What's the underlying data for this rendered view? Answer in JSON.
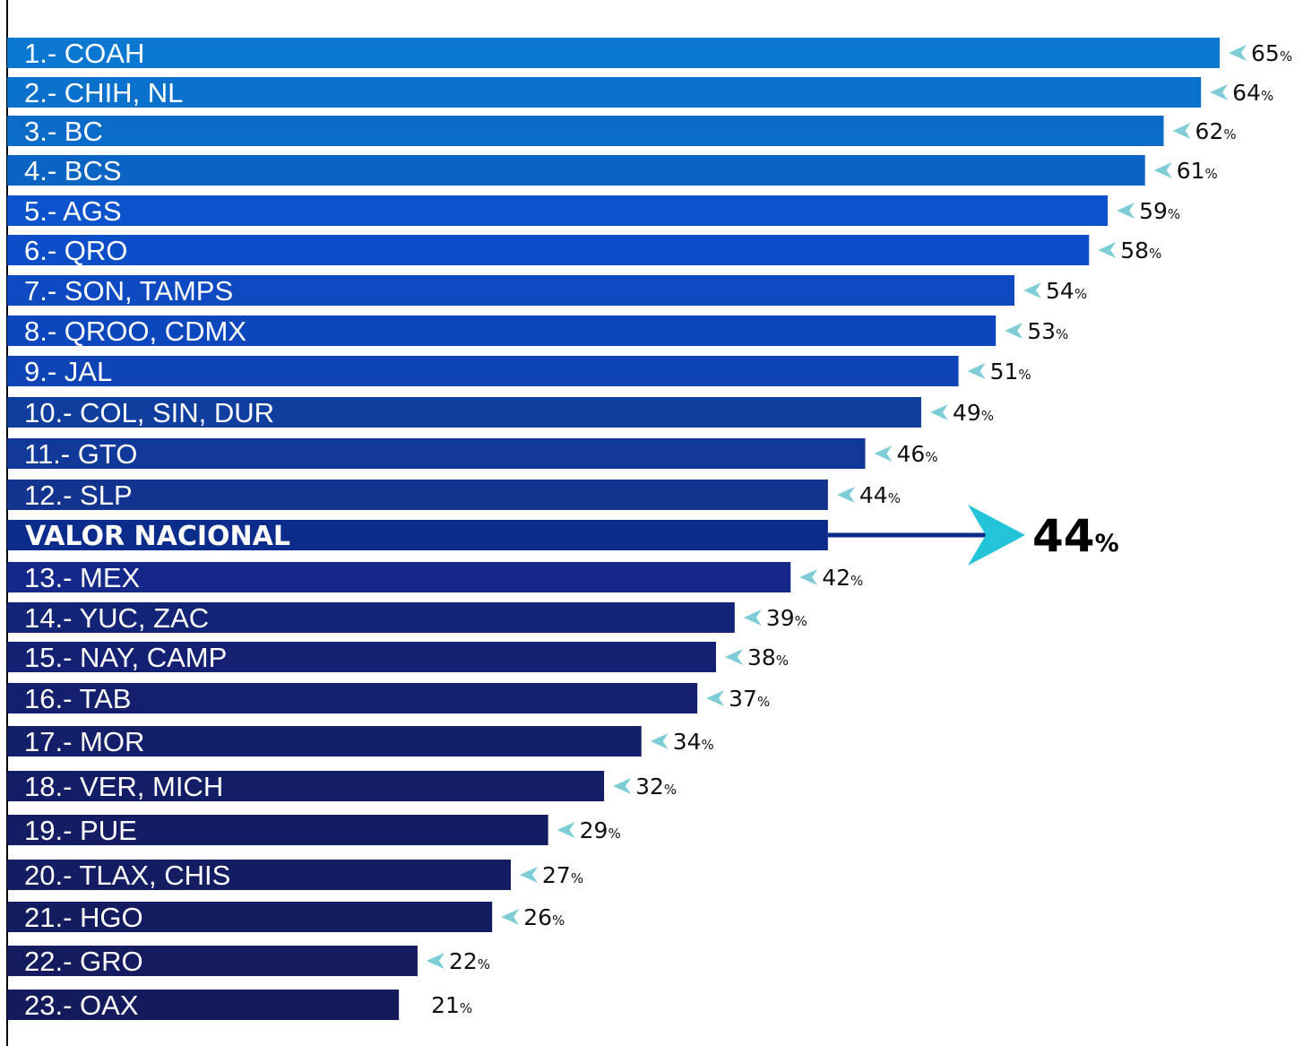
{
  "chart_data": {
    "type": "bar",
    "orientation": "horizontal",
    "categories": [
      "1.- COAH",
      "2.- CHIH, NL",
      "3.- BC",
      "4.- BCS",
      "5.- AGS",
      "6.- QRO",
      "7.- SON, TAMPS",
      "8.- QROO, CDMX",
      "9.- JAL",
      "10.- COL, SIN, DUR",
      "11.- GTO",
      "12.- SLP",
      "13.- MEX",
      "14.- YUC, ZAC",
      "15.- NAY, CAMP",
      "16.- TAB",
      "17.- MOR",
      "18.- VER, MICH",
      "19.- PUE",
      "20.- TLAX, CHIS",
      "21.- HGO",
      "22.- GRO",
      "23.- OAX"
    ],
    "values": [
      65,
      64,
      62,
      61,
      59,
      58,
      54,
      53,
      51,
      49,
      46,
      44,
      42,
      39,
      38,
      37,
      34,
      32,
      29,
      27,
      26,
      22,
      21
    ],
    "value_suffix": "%",
    "value_marker": [
      true,
      true,
      true,
      true,
      true,
      true,
      true,
      true,
      true,
      true,
      true,
      true,
      true,
      true,
      true,
      true,
      true,
      true,
      true,
      true,
      true,
      true,
      false
    ],
    "national": {
      "label": "VALOR NACIONAL",
      "value": 44,
      "suffix": "%"
    },
    "colors": [
      "#0a78d0",
      "#0a72cc",
      "#0b6bc8",
      "#0b64c2",
      "#0c52cc",
      "#0c4ec8",
      "#0d4ac2",
      "#0d47be",
      "#0f44b6",
      "#103e9e",
      "#11399a",
      "#12348f",
      "#14288a",
      "#132476",
      "#142173",
      "#14206e",
      "#141f69",
      "#141e66",
      "#141d64",
      "#141c62",
      "#141c60",
      "#141b5e",
      "#141b5c"
    ],
    "national_color": "#0c2c8c",
    "marker_color": "#7ecdd6",
    "national_arrow_color": "#22c4da",
    "xlim": [
      0,
      65
    ],
    "grid": false,
    "legend": "none"
  }
}
